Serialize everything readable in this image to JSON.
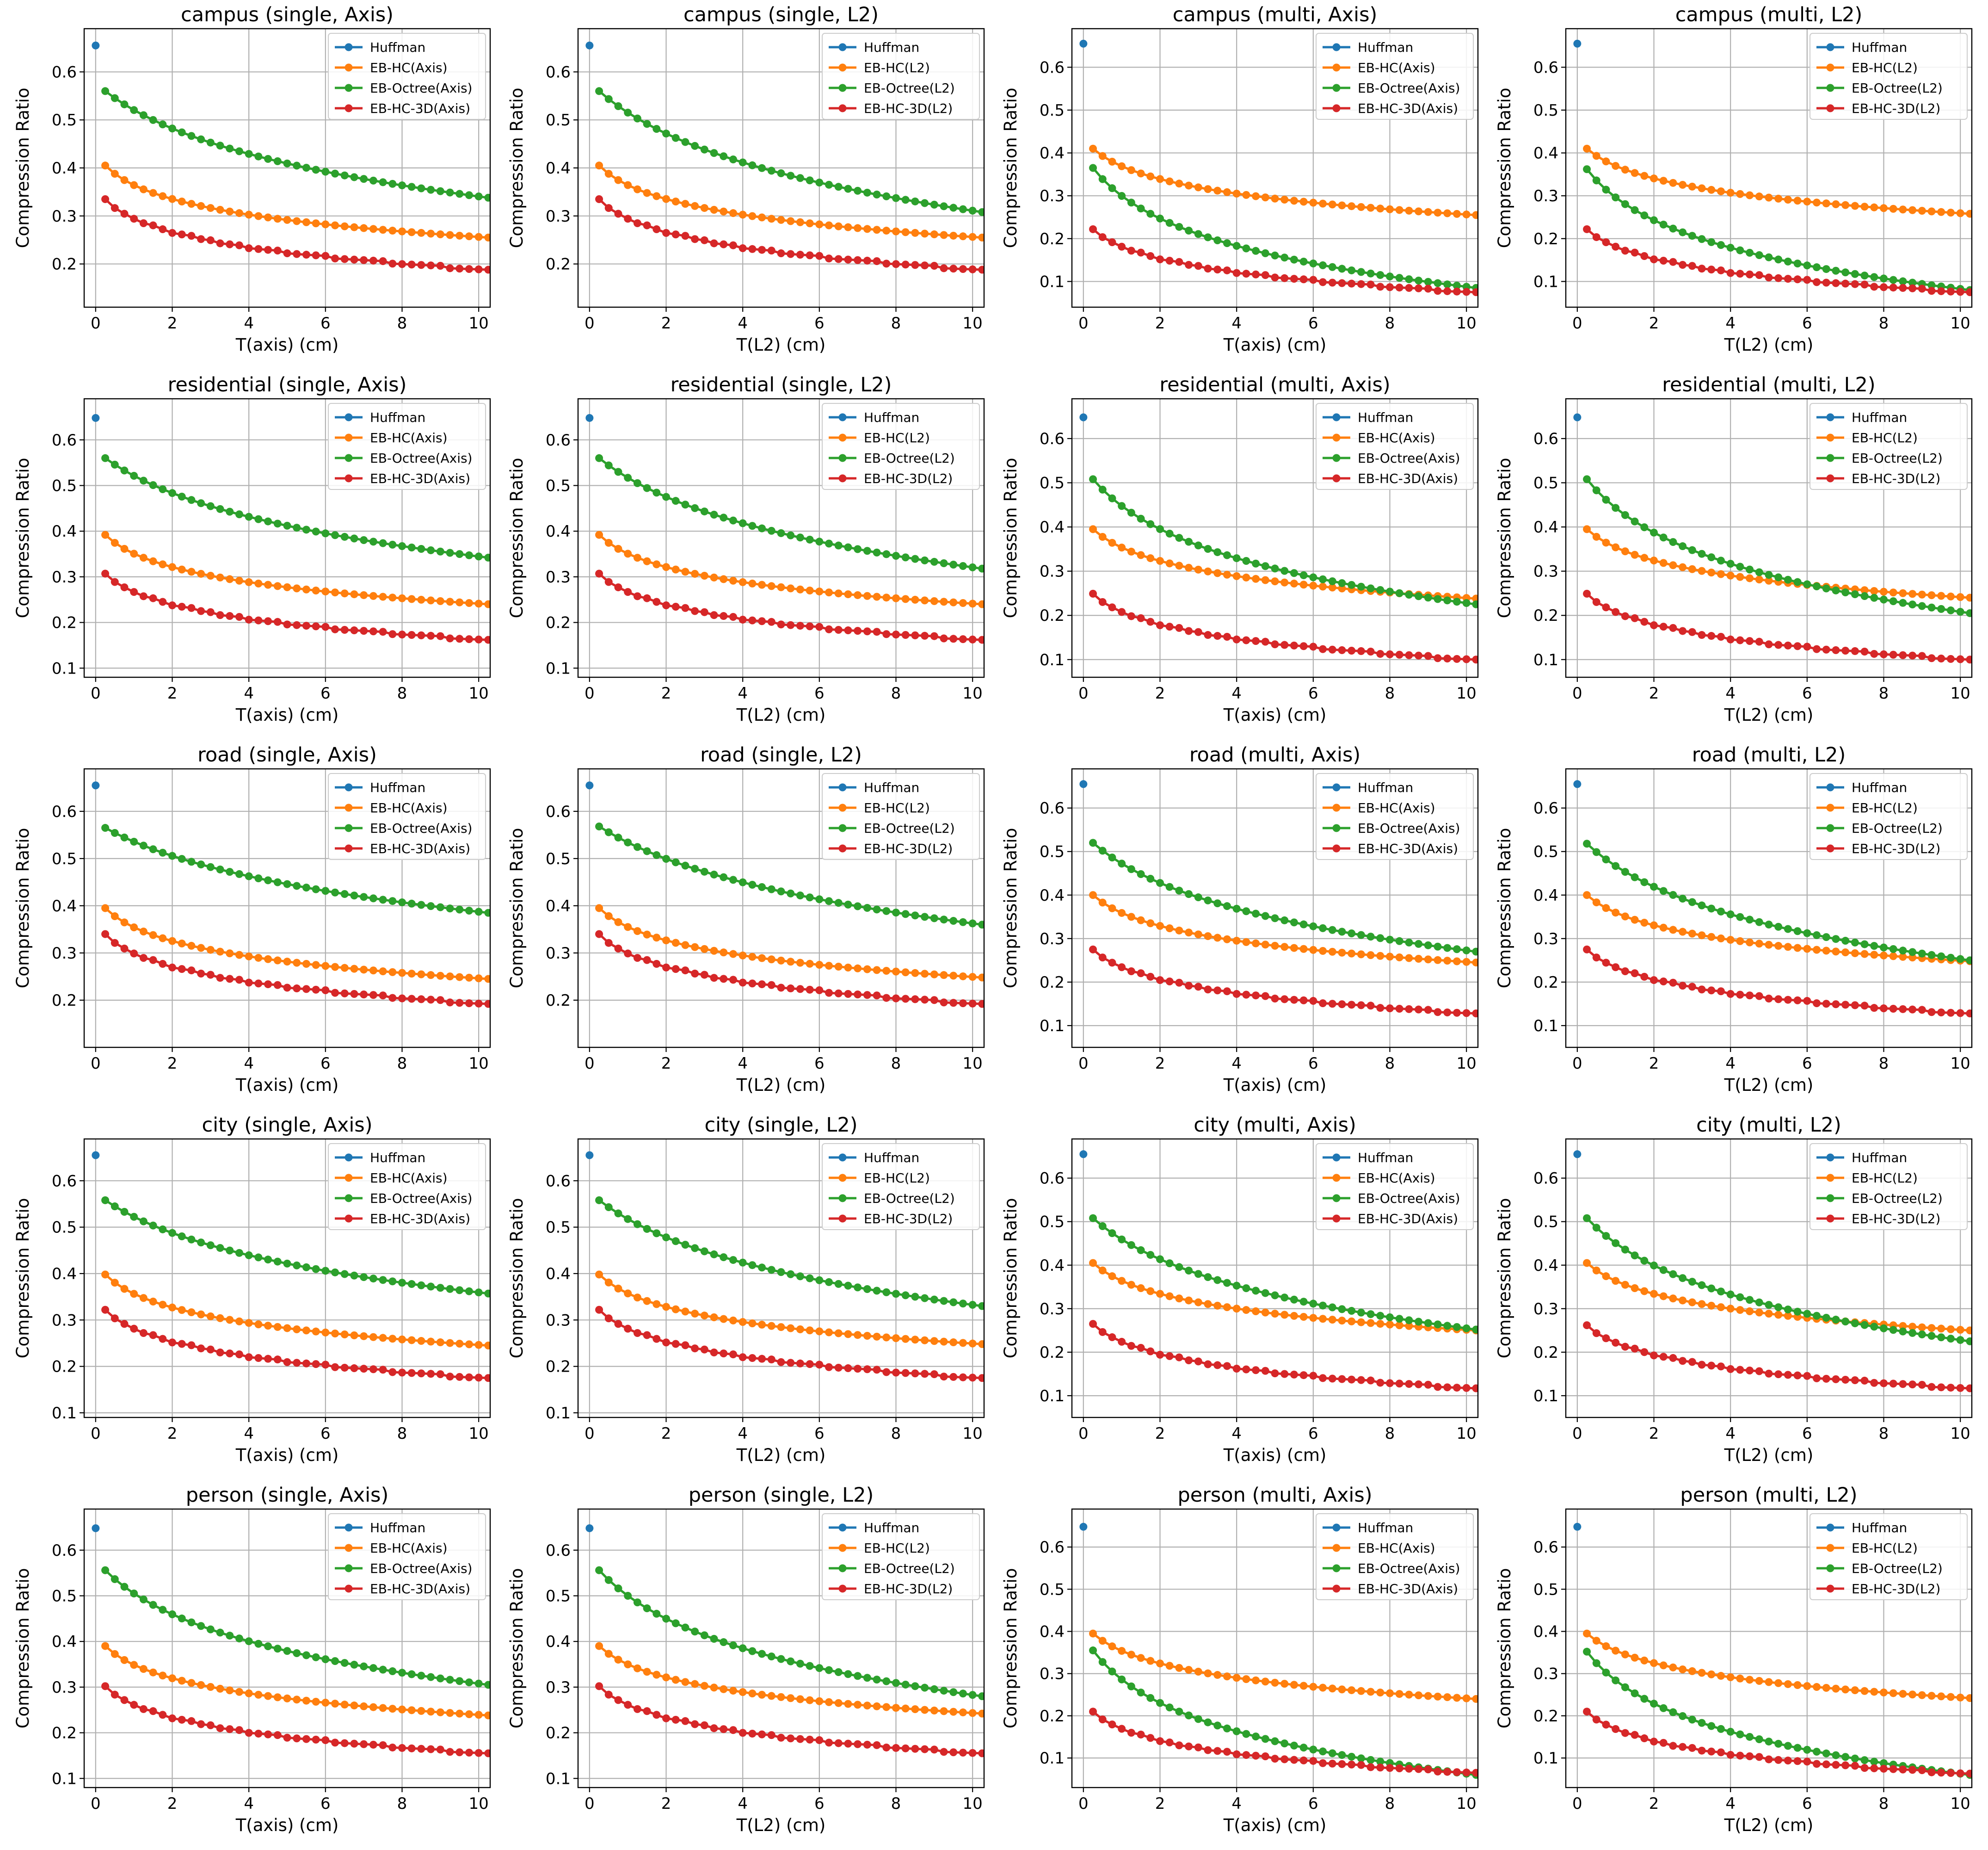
{
  "chart_data": {
    "type": "line",
    "layout": {
      "rows": 5,
      "cols": 4
    },
    "ylabel": "Compression Ratio",
    "xlabels": {
      "axis": "T(axis) (cm)",
      "l2": "T(L2) (cm)"
    },
    "xlim": [
      -0.3,
      10.3
    ],
    "xticks": [
      0,
      2,
      4,
      6,
      8,
      10
    ],
    "x_start": 0.25,
    "x_step": 0.25,
    "n_points": 41,
    "colors": {
      "huffman": "#1f77b4",
      "hc": "#ff7f0e",
      "octree": "#2ca02c",
      "hc3d": "#d62728"
    },
    "legend_location": "upper right",
    "panels": [
      {
        "title": "campus (single, Axis)",
        "metric": "axis",
        "huffman": 0.655,
        "ylim": [
          0.11,
          0.69
        ],
        "yticks": [
          0.2,
          0.3,
          0.4,
          0.5,
          0.6
        ],
        "legend": [
          "Huffman",
          "EB-HC(Axis)",
          "EB-Octree(Axis)",
          "EB-HC-3D(Axis)"
        ],
        "hc": {
          "start": 0.405,
          "end": 0.255,
          "curve": 1.5
        },
        "octree": {
          "start": 0.56,
          "end": 0.338,
          "curve": 0.5
        },
        "hc3d": {
          "start": 0.335,
          "end": 0.188,
          "curve": 1.5
        }
      },
      {
        "title": "campus (single, L2)",
        "metric": "l2",
        "huffman": 0.655,
        "ylim": [
          0.11,
          0.69
        ],
        "yticks": [
          0.2,
          0.3,
          0.4,
          0.5,
          0.6
        ],
        "legend": [
          "Huffman",
          "EB-HC(L2)",
          "EB-Octree(L2)",
          "EB-HC-3D(L2)"
        ],
        "hc": {
          "start": 0.405,
          "end": 0.255,
          "curve": 1.5
        },
        "octree": {
          "start": 0.56,
          "end": 0.308,
          "curve": 0.5
        },
        "hc3d": {
          "start": 0.335,
          "end": 0.188,
          "curve": 1.5
        }
      },
      {
        "title": "campus (multi, Axis)",
        "metric": "axis",
        "huffman": 0.655,
        "ylim": [
          0.04,
          0.69
        ],
        "yticks": [
          0.1,
          0.2,
          0.3,
          0.4,
          0.5,
          0.6
        ],
        "legend": [
          "Huffman",
          "EB-HC(Axis)",
          "EB-Octree(Axis)",
          "EB-HC-3D(Axis)"
        ],
        "hc": {
          "start": 0.41,
          "end": 0.255,
          "curve": 1.4
        },
        "octree": {
          "start": 0.365,
          "end": 0.085,
          "curve": 1.0
        },
        "hc3d": {
          "start": 0.222,
          "end": 0.075,
          "curve": 1.5
        }
      },
      {
        "title": "campus (multi, L2)",
        "metric": "l2",
        "huffman": 0.655,
        "ylim": [
          0.04,
          0.69
        ],
        "yticks": [
          0.1,
          0.2,
          0.3,
          0.4,
          0.5,
          0.6
        ],
        "legend": [
          "Huffman",
          "EB-HC(L2)",
          "EB-Octree(L2)",
          "EB-HC-3D(L2)"
        ],
        "hc": {
          "start": 0.41,
          "end": 0.258,
          "curve": 1.4
        },
        "octree": {
          "start": 0.362,
          "end": 0.08,
          "curve": 1.0
        },
        "hc3d": {
          "start": 0.222,
          "end": 0.075,
          "curve": 1.5
        }
      },
      {
        "title": "residential (single, Axis)",
        "metric": "axis",
        "huffman": 0.648,
        "ylim": [
          0.08,
          0.69
        ],
        "yticks": [
          0.1,
          0.2,
          0.3,
          0.4,
          0.5,
          0.6
        ],
        "legend": [
          "Huffman",
          "EB-HC(Axis)",
          "EB-Octree(Axis)",
          "EB-HC-3D(Axis)"
        ],
        "hc": {
          "start": 0.392,
          "end": 0.24,
          "curve": 1.5
        },
        "octree": {
          "start": 0.56,
          "end": 0.342,
          "curve": 0.5
        },
        "hc3d": {
          "start": 0.307,
          "end": 0.162,
          "curve": 1.5
        }
      },
      {
        "title": "residential (single, L2)",
        "metric": "l2",
        "huffman": 0.648,
        "ylim": [
          0.08,
          0.69
        ],
        "yticks": [
          0.1,
          0.2,
          0.3,
          0.4,
          0.5,
          0.6
        ],
        "legend": [
          "Huffman",
          "EB-HC(L2)",
          "EB-Octree(L2)",
          "EB-HC-3D(L2)"
        ],
        "hc": {
          "start": 0.392,
          "end": 0.24,
          "curve": 1.5
        },
        "octree": {
          "start": 0.56,
          "end": 0.318,
          "curve": 0.5
        },
        "hc3d": {
          "start": 0.307,
          "end": 0.162,
          "curve": 1.5
        }
      },
      {
        "title": "residential (multi, Axis)",
        "metric": "axis",
        "huffman": 0.648,
        "ylim": [
          0.06,
          0.69
        ],
        "yticks": [
          0.1,
          0.2,
          0.3,
          0.4,
          0.5,
          0.6
        ],
        "legend": [
          "Huffman",
          "EB-HC(Axis)",
          "EB-Octree(Axis)",
          "EB-HC-3D(Axis)"
        ],
        "hc": {
          "start": 0.395,
          "end": 0.238,
          "curve": 1.4
        },
        "octree": {
          "start": 0.508,
          "end": 0.225,
          "curve": 0.8
        },
        "hc3d": {
          "start": 0.249,
          "end": 0.1,
          "curve": 1.5
        }
      },
      {
        "title": "residential (multi, L2)",
        "metric": "l2",
        "huffman": 0.648,
        "ylim": [
          0.06,
          0.69
        ],
        "yticks": [
          0.1,
          0.2,
          0.3,
          0.4,
          0.5,
          0.6
        ],
        "legend": [
          "Huffman",
          "EB-HC(L2)",
          "EB-Octree(L2)",
          "EB-HC-3D(L2)"
        ],
        "hc": {
          "start": 0.395,
          "end": 0.24,
          "curve": 1.4
        },
        "octree": {
          "start": 0.508,
          "end": 0.205,
          "curve": 0.8
        },
        "hc3d": {
          "start": 0.249,
          "end": 0.1,
          "curve": 1.5
        }
      },
      {
        "title": "road (single, Axis)",
        "metric": "axis",
        "huffman": 0.655,
        "ylim": [
          0.1,
          0.69
        ],
        "yticks": [
          0.2,
          0.3,
          0.4,
          0.5,
          0.6
        ],
        "legend": [
          "Huffman",
          "EB-HC(Axis)",
          "EB-Octree(Axis)",
          "EB-HC-3D(Axis)"
        ],
        "hc": {
          "start": 0.395,
          "end": 0.245,
          "curve": 1.5
        },
        "octree": {
          "start": 0.565,
          "end": 0.385,
          "curve": 0.4
        },
        "hc3d": {
          "start": 0.34,
          "end": 0.192,
          "curve": 1.5
        }
      },
      {
        "title": "road (single, L2)",
        "metric": "l2",
        "huffman": 0.655,
        "ylim": [
          0.1,
          0.69
        ],
        "yticks": [
          0.2,
          0.3,
          0.4,
          0.5,
          0.6
        ],
        "legend": [
          "Huffman",
          "EB-HC(L2)",
          "EB-Octree(L2)",
          "EB-HC-3D(L2)"
        ],
        "hc": {
          "start": 0.395,
          "end": 0.248,
          "curve": 1.5
        },
        "octree": {
          "start": 0.568,
          "end": 0.36,
          "curve": 0.4
        },
        "hc3d": {
          "start": 0.34,
          "end": 0.192,
          "curve": 1.5
        }
      },
      {
        "title": "road (multi, Axis)",
        "metric": "axis",
        "huffman": 0.655,
        "ylim": [
          0.05,
          0.69
        ],
        "yticks": [
          0.1,
          0.2,
          0.3,
          0.4,
          0.5,
          0.6
        ],
        "legend": [
          "Huffman",
          "EB-HC(Axis)",
          "EB-Octree(Axis)",
          "EB-HC-3D(Axis)"
        ],
        "hc": {
          "start": 0.4,
          "end": 0.245,
          "curve": 1.4
        },
        "octree": {
          "start": 0.52,
          "end": 0.27,
          "curve": 0.6
        },
        "hc3d": {
          "start": 0.275,
          "end": 0.128,
          "curve": 1.5
        }
      },
      {
        "title": "road (multi, L2)",
        "metric": "l2",
        "huffman": 0.655,
        "ylim": [
          0.05,
          0.69
        ],
        "yticks": [
          0.1,
          0.2,
          0.3,
          0.4,
          0.5,
          0.6
        ],
        "legend": [
          "Huffman",
          "EB-HC(L2)",
          "EB-Octree(L2)",
          "EB-HC-3D(L2)"
        ],
        "hc": {
          "start": 0.4,
          "end": 0.248,
          "curve": 1.4
        },
        "octree": {
          "start": 0.518,
          "end": 0.25,
          "curve": 0.6
        },
        "hc3d": {
          "start": 0.275,
          "end": 0.128,
          "curve": 1.5
        }
      },
      {
        "title": "city (single, Axis)",
        "metric": "axis",
        "huffman": 0.655,
        "ylim": [
          0.09,
          0.69
        ],
        "yticks": [
          0.1,
          0.2,
          0.3,
          0.4,
          0.5,
          0.6
        ],
        "legend": [
          "Huffman",
          "EB-HC(Axis)",
          "EB-Octree(Axis)",
          "EB-HC-3D(Axis)"
        ],
        "hc": {
          "start": 0.398,
          "end": 0.245,
          "curve": 1.5
        },
        "octree": {
          "start": 0.558,
          "end": 0.357,
          "curve": 0.5
        },
        "hc3d": {
          "start": 0.322,
          "end": 0.175,
          "curve": 1.5
        }
      },
      {
        "title": "city (single, L2)",
        "metric": "l2",
        "huffman": 0.655,
        "ylim": [
          0.09,
          0.69
        ],
        "yticks": [
          0.1,
          0.2,
          0.3,
          0.4,
          0.5,
          0.6
        ],
        "legend": [
          "Huffman",
          "EB-HC(L2)",
          "EB-Octree(L2)",
          "EB-HC-3D(L2)"
        ],
        "hc": {
          "start": 0.398,
          "end": 0.248,
          "curve": 1.5
        },
        "octree": {
          "start": 0.558,
          "end": 0.33,
          "curve": 0.5
        },
        "hc3d": {
          "start": 0.322,
          "end": 0.175,
          "curve": 1.5
        }
      },
      {
        "title": "city (multi, Axis)",
        "metric": "axis",
        "huffman": 0.655,
        "ylim": [
          0.05,
          0.69
        ],
        "yticks": [
          0.1,
          0.2,
          0.3,
          0.4,
          0.5,
          0.6
        ],
        "legend": [
          "Huffman",
          "EB-HC(Axis)",
          "EB-Octree(Axis)",
          "EB-HC-3D(Axis)"
        ],
        "hc": {
          "start": 0.405,
          "end": 0.25,
          "curve": 1.4
        },
        "octree": {
          "start": 0.508,
          "end": 0.252,
          "curve": 0.6
        },
        "hc3d": {
          "start": 0.265,
          "end": 0.117,
          "curve": 1.5
        }
      },
      {
        "title": "city (multi, L2)",
        "metric": "l2",
        "huffman": 0.655,
        "ylim": [
          0.05,
          0.69
        ],
        "yticks": [
          0.1,
          0.2,
          0.3,
          0.4,
          0.5,
          0.6
        ],
        "legend": [
          "Huffman",
          "EB-HC(L2)",
          "EB-Octree(L2)",
          "EB-HC-3D(L2)"
        ],
        "hc": {
          "start": 0.405,
          "end": 0.25,
          "curve": 1.4
        },
        "octree": {
          "start": 0.508,
          "end": 0.225,
          "curve": 0.7
        },
        "hc3d": {
          "start": 0.262,
          "end": 0.117,
          "curve": 1.5
        }
      },
      {
        "title": "person (single, Axis)",
        "metric": "axis",
        "huffman": 0.648,
        "ylim": [
          0.08,
          0.69
        ],
        "yticks": [
          0.1,
          0.2,
          0.3,
          0.4,
          0.5,
          0.6
        ],
        "legend": [
          "Huffman",
          "EB-HC(Axis)",
          "EB-Octree(Axis)",
          "EB-HC-3D(Axis)"
        ],
        "hc": {
          "start": 0.39,
          "end": 0.238,
          "curve": 1.5
        },
        "octree": {
          "start": 0.556,
          "end": 0.305,
          "curve": 0.7
        },
        "hc3d": {
          "start": 0.302,
          "end": 0.155,
          "curve": 1.5
        }
      },
      {
        "title": "person (single, L2)",
        "metric": "l2",
        "huffman": 0.648,
        "ylim": [
          0.08,
          0.69
        ],
        "yticks": [
          0.1,
          0.2,
          0.3,
          0.4,
          0.5,
          0.6
        ],
        "legend": [
          "Huffman",
          "EB-HC(L2)",
          "EB-Octree(L2)",
          "EB-HC-3D(L2)"
        ],
        "hc": {
          "start": 0.39,
          "end": 0.242,
          "curve": 1.5
        },
        "octree": {
          "start": 0.556,
          "end": 0.28,
          "curve": 0.7
        },
        "hc3d": {
          "start": 0.302,
          "end": 0.155,
          "curve": 1.5
        }
      },
      {
        "title": "person (multi, Axis)",
        "metric": "axis",
        "huffman": 0.648,
        "ylim": [
          0.03,
          0.69
        ],
        "yticks": [
          0.1,
          0.2,
          0.3,
          0.4,
          0.5,
          0.6
        ],
        "legend": [
          "Huffman",
          "EB-HC(Axis)",
          "EB-Octree(Axis)",
          "EB-HC-3D(Axis)"
        ],
        "hc": {
          "start": 0.395,
          "end": 0.24,
          "curve": 1.4
        },
        "octree": {
          "start": 0.355,
          "end": 0.06,
          "curve": 1.0
        },
        "hc3d": {
          "start": 0.21,
          "end": 0.065,
          "curve": 1.6
        }
      },
      {
        "title": "person (multi, L2)",
        "metric": "l2",
        "huffman": 0.648,
        "ylim": [
          0.03,
          0.69
        ],
        "yticks": [
          0.1,
          0.2,
          0.3,
          0.4,
          0.5,
          0.6
        ],
        "legend": [
          "Huffman",
          "EB-HC(L2)",
          "EB-Octree(L2)",
          "EB-HC-3D(L2)"
        ],
        "hc": {
          "start": 0.395,
          "end": 0.242,
          "curve": 1.4
        },
        "octree": {
          "start": 0.352,
          "end": 0.06,
          "curve": 1.0
        },
        "hc3d": {
          "start": 0.21,
          "end": 0.063,
          "curve": 1.6
        }
      }
    ]
  }
}
